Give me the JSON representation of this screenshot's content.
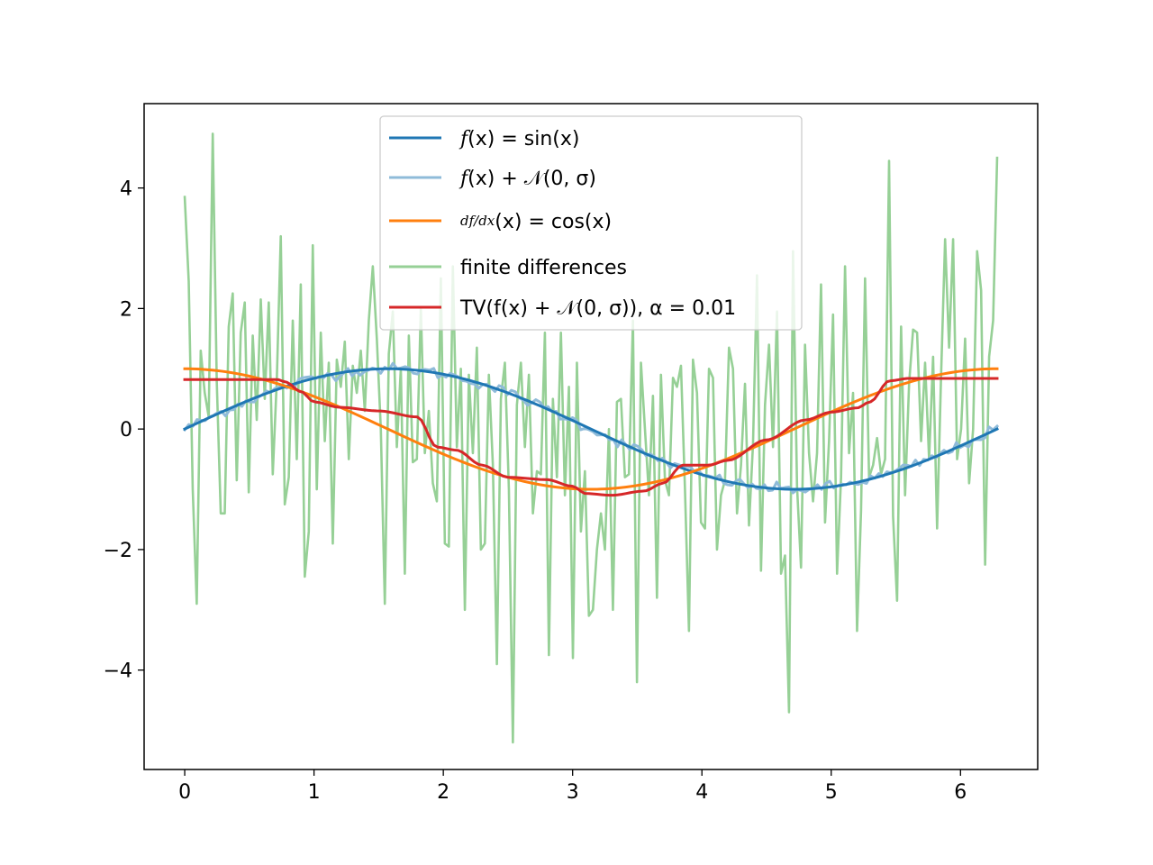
{
  "chart_data": {
    "type": "line",
    "title": "",
    "xlabel": "",
    "ylabel": "",
    "xlim": [
      -0.314,
      6.597
    ],
    "ylim": [
      -5.65,
      5.4
    ],
    "grid": false,
    "legend_position": "top-center",
    "xticks": [
      0,
      1,
      2,
      3,
      4,
      5,
      6
    ],
    "xtick_labels": [
      "0",
      "1",
      "2",
      "3",
      "4",
      "5",
      "6"
    ],
    "yticks": [
      -4,
      -2,
      0,
      2,
      4
    ],
    "ytick_labels": [
      "−4",
      "−2",
      "0",
      "2",
      "4"
    ],
    "series": [
      {
        "name": "f(x) = sin(x)",
        "color": "#1f77b4",
        "style": "sin",
        "x_range": [
          0,
          6.2832
        ],
        "points": 200
      },
      {
        "name": "f(x) + 𝒩(0, σ)",
        "color": "#8fbbd9",
        "style": "noisy_sin",
        "x_range": [
          0,
          6.2832
        ],
        "points": 200
      },
      {
        "name": "df/dx(x) = cos(x)",
        "color": "#ff7f0e",
        "style": "cos",
        "x_range": [
          0,
          6.2832
        ],
        "points": 200
      },
      {
        "name": "finite differences",
        "color": "#96d096",
        "style": "finite_diff",
        "x_range": [
          0,
          6.2832
        ],
        "values": [
          3.85,
          2.45,
          -1.0,
          -2.9,
          1.3,
          0.6,
          0.2,
          4.9,
          0.8,
          -1.4,
          -1.4,
          1.7,
          2.25,
          -0.85,
          1.6,
          2.1,
          -1.05,
          1.55,
          0.15,
          2.15,
          0.5,
          2.1,
          -0.75,
          0.8,
          3.2,
          -1.25,
          -0.8,
          1.8,
          -0.5,
          2.4,
          -2.45,
          -1.7,
          3.05,
          -1.0,
          1.6,
          -0.2,
          1.1,
          -1.9,
          1.15,
          0.7,
          1.45,
          -0.5,
          1.05,
          0.6,
          1.3,
          0.3,
          1.8,
          2.7,
          1.5,
          0.0,
          -2.9,
          1.25,
          1.95,
          -0.3,
          1.0,
          -2.4,
          1.55,
          -0.55,
          -0.5,
          2.0,
          -0.4,
          0.3,
          -0.9,
          -1.2,
          2.5,
          -1.9,
          -1.95,
          2.7,
          -0.3,
          1.0,
          -3.0,
          0.9,
          -0.4,
          1.35,
          -2.0,
          -1.9,
          0.9,
          -0.6,
          -3.9,
          0.5,
          1.1,
          -1.0,
          -5.2,
          0.4,
          1.1,
          -0.3,
          0.9,
          -1.4,
          -0.7,
          -0.75,
          1.6,
          -3.75,
          0.5,
          -0.8,
          1.6,
          -1.1,
          0.7,
          -3.8,
          1.1,
          -1.7,
          -0.7,
          -3.1,
          -3.0,
          -2.0,
          -1.4,
          -2.0,
          0.0,
          -3.0,
          0.45,
          0.5,
          -0.8,
          -0.75,
          1.8,
          -4.2,
          1.1,
          0.0,
          -1.1,
          0.55,
          -2.8,
          0.9,
          -0.85,
          -1.1,
          0.85,
          0.7,
          1.05,
          -1.0,
          -3.35,
          1.15,
          0.6,
          -1.55,
          -1.65,
          1.0,
          0.85,
          -2.0,
          -1.1,
          -0.85,
          1.35,
          1.0,
          -1.4,
          -0.6,
          0.75,
          -1.6,
          -0.25,
          2.55,
          -2.35,
          0.4,
          1.4,
          -0.3,
          1.95,
          -2.4,
          -2.1,
          -4.7,
          2.95,
          -0.95,
          -2.3,
          1.4,
          -0.4,
          -1.2,
          -0.4,
          2.4,
          -1.55,
          -0.2,
          1.9,
          -2.4,
          -0.8,
          2.7,
          -0.4,
          0.6,
          -3.35,
          -1.35,
          2.5,
          -0.8,
          -0.6,
          -0.15,
          -0.75,
          -0.5,
          4.45,
          -1.45,
          -2.85,
          1.7,
          -1.1,
          0.75,
          1.65,
          1.6,
          -0.2,
          1.1,
          -0.5,
          1.2,
          -1.65,
          0.9,
          3.15,
          1.35,
          3.15,
          -0.5,
          0.0,
          1.5,
          -0.9,
          0.0,
          2.95,
          2.3,
          -2.25,
          1.2,
          1.8,
          4.5
        ]
      },
      {
        "name": "TV(f(x) + 𝒩(0, σ)), α = 0.01",
        "color": "#d62728",
        "style": "tv",
        "x_range": [
          0,
          6.2832
        ],
        "knots_x": [
          0.0,
          0.72,
          0.78,
          0.9,
          1.0,
          1.2,
          1.5,
          1.8,
          1.95,
          2.1,
          2.3,
          2.5,
          2.8,
          3.0,
          3.1,
          3.3,
          3.55,
          3.7,
          3.85,
          4.05,
          4.2,
          4.5,
          4.8,
          5.0,
          5.2,
          5.3,
          5.45,
          5.6,
          6.2832
        ],
        "knots_y": [
          0.82,
          0.82,
          0.78,
          0.62,
          0.45,
          0.36,
          0.3,
          0.2,
          -0.3,
          -0.35,
          -0.6,
          -0.8,
          -0.84,
          -0.95,
          -1.07,
          -1.1,
          -1.03,
          -0.9,
          -0.6,
          -0.6,
          -0.52,
          -0.18,
          0.15,
          0.28,
          0.35,
          0.45,
          0.8,
          0.84,
          0.84
        ]
      }
    ],
    "legend_entries": [
      {
        "sym": "f",
        "text": "(x) = sin(x)"
      },
      {
        "sym": "f",
        "text": "(x) + 𝒩(0, σ)"
      },
      {
        "sym": "df/dx",
        "text": "(x) = cos(x)"
      },
      {
        "sym": "",
        "text": "finite differences"
      },
      {
        "sym": "",
        "text": "TV(f(x) + 𝒩(0, σ)), α = 0.01"
      }
    ]
  }
}
